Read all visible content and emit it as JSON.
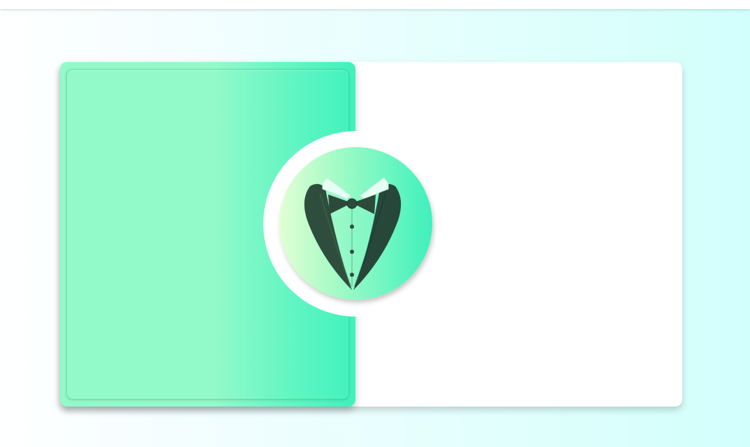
{
  "page": {
    "background_start": "#ffffff",
    "background_end": "#d2fffc"
  },
  "panel": {
    "accent_light": "#92f9c8",
    "accent_dark": "#3ff2bc"
  },
  "logo": {
    "icon": "tuxedo-icon",
    "suit_color": "#2a4a3a",
    "collar_color": "#e6fff4"
  }
}
